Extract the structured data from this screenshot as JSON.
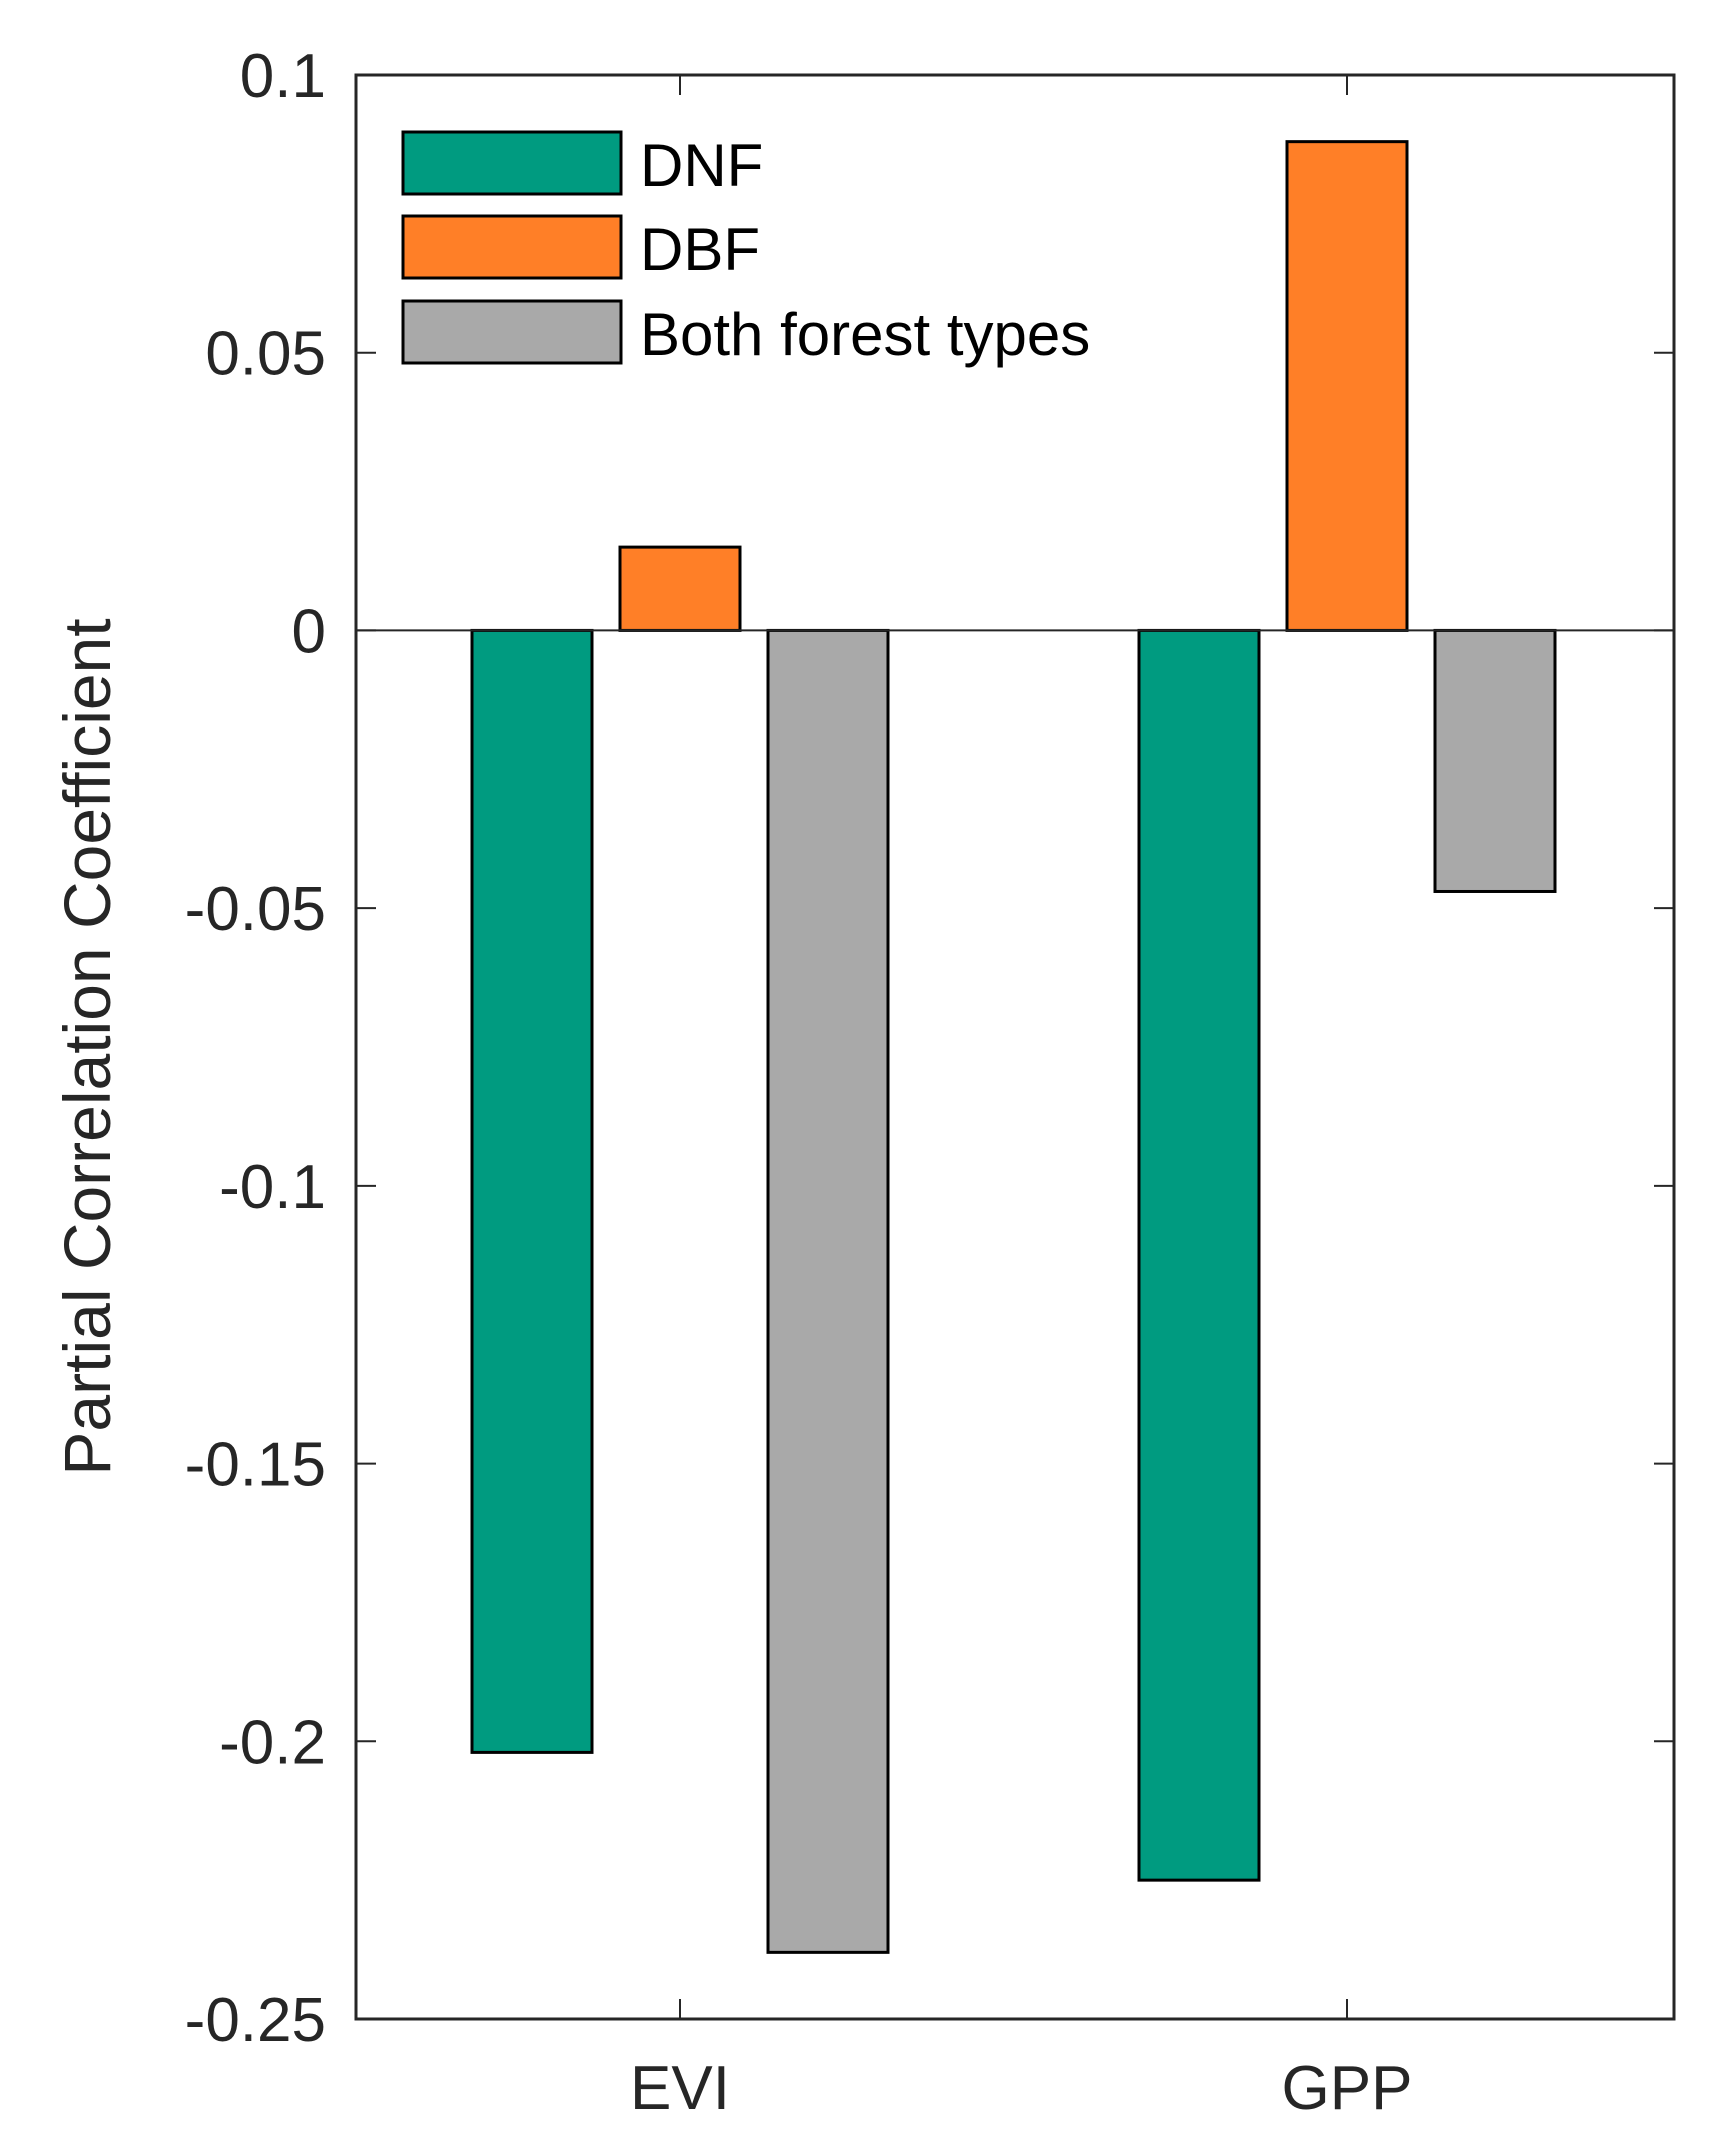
{
  "chart_data": {
    "type": "bar",
    "title": "",
    "xlabel": "",
    "ylabel": "Partial Correlation Coefficient",
    "categories": [
      "EVI",
      "GPP"
    ],
    "series": [
      {
        "name": "DNF",
        "color": "#009B80",
        "values": [
          -0.202,
          -0.225
        ]
      },
      {
        "name": "DBF",
        "color": "#FF7F27",
        "values": [
          0.015,
          0.088
        ]
      },
      {
        "name": "Both forest types",
        "color": "#A9A9A9",
        "values": [
          -0.238,
          -0.047
        ]
      }
    ],
    "ylim": [
      -0.25,
      0.1
    ],
    "yticks": [
      0.1,
      0.05,
      0,
      -0.05,
      -0.1,
      -0.15,
      -0.2,
      -0.25
    ],
    "ytick_labels": [
      "0.1",
      "0.05",
      "0",
      "-0.05",
      "-0.1",
      "-0.15",
      "-0.2",
      "-0.25"
    ],
    "grid": false,
    "legend_position": "top-left"
  }
}
